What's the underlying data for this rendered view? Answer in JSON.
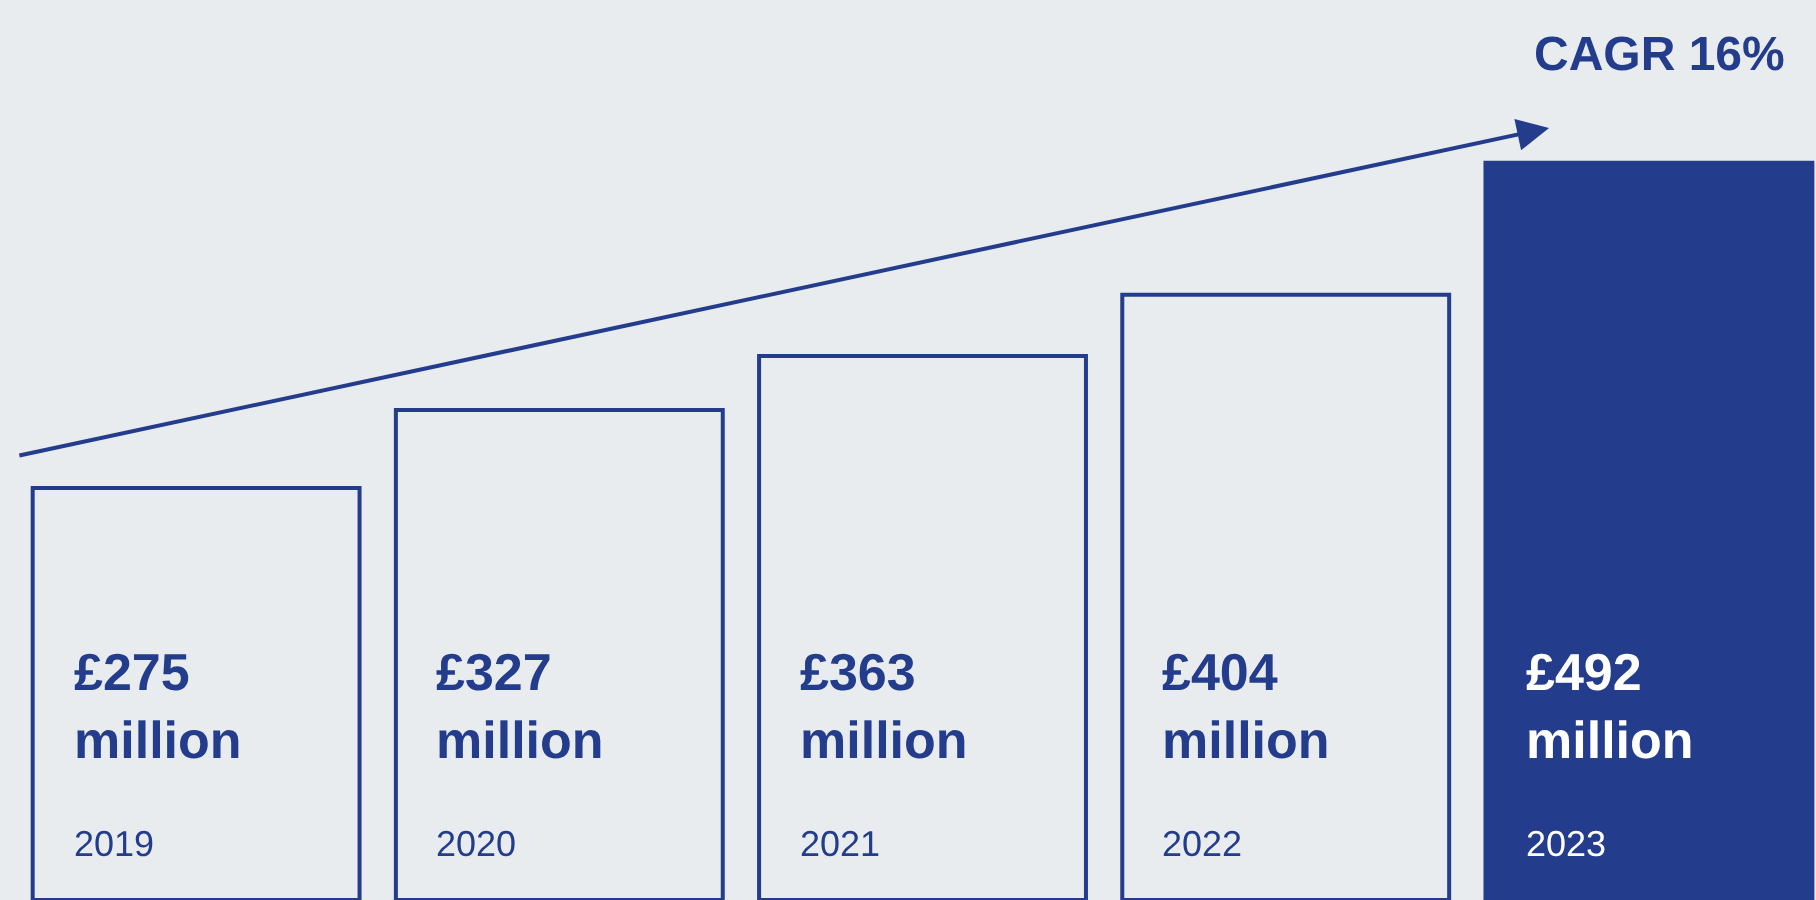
{
  "chart_data": {
    "type": "bar",
    "categories": [
      "2019",
      "2020",
      "2021",
      "2022",
      "2023"
    ],
    "values": [
      275,
      327,
      363,
      404,
      492
    ],
    "value_labels": [
      "£275 million",
      "£327 million",
      "£363 million",
      "£404 million",
      "£492 million"
    ],
    "colors": [
      "#e8ecef",
      "#e8ecef",
      "#e8ecef",
      "#e8ecef",
      "#233c8c"
    ],
    "tick_labels": false,
    "grid": false,
    "legend": false,
    "annotations": [
      "CAGR 16%"
    ]
  }
}
